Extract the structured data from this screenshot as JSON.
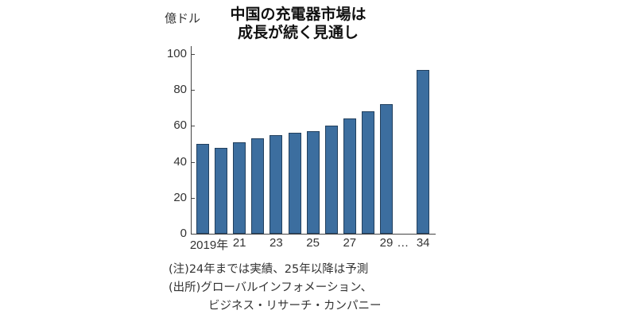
{
  "header": {
    "unit_label": "億ドル",
    "title_line1": "中国の充電器市場は",
    "title_line2": "成長が続く見通し"
  },
  "axis": {
    "y_ticks": [
      "0",
      "20",
      "40",
      "60",
      "80",
      "100"
    ],
    "x_labels": [
      {
        "label": "2019年",
        "index": 0
      },
      {
        "label": "21",
        "index": 2
      },
      {
        "label": "23",
        "index": 4
      },
      {
        "label": "25",
        "index": 6
      },
      {
        "label": "27",
        "index": 8
      },
      {
        "label": "29",
        "index": 10
      },
      {
        "label": "…",
        "index": 10.9
      },
      {
        "label": "34",
        "index": 12
      }
    ]
  },
  "notes": {
    "note": "(注)24年までは実績、25年以降は予測",
    "source_line1": "(出所)グローバルインフォメーション、",
    "source_line2": "ビジネス・リサーチ・カンパニー"
  },
  "colors": {
    "bar": "#3c6e9f",
    "bar_border": "#22405e"
  },
  "chart_data": {
    "type": "bar",
    "title": "中国の充電器市場は成長が続く見通し",
    "xlabel": "",
    "ylabel": "億ドル",
    "ylim": [
      0,
      100
    ],
    "grid": false,
    "categories": [
      "2019",
      "2020",
      "2021",
      "2022",
      "2023",
      "2024",
      "2025",
      "2026",
      "2027",
      "2028",
      "2029",
      "2034"
    ],
    "values": [
      50,
      48,
      51,
      53,
      55,
      56,
      57,
      60,
      64,
      68,
      72,
      91
    ],
    "annotations": [
      "(注)24年までは実績、25年以降は予測"
    ]
  }
}
